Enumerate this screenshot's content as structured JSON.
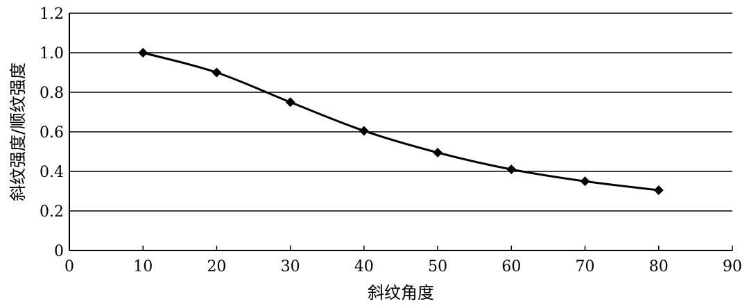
{
  "chart_data": {
    "type": "line",
    "title": "",
    "xlabel": "斜纹角度",
    "ylabel": "斜纹强度/顺纹强度",
    "x": [
      10,
      20,
      30,
      40,
      50,
      60,
      70,
      80
    ],
    "series": [
      {
        "values": [
          1.0,
          0.9,
          0.75,
          0.605,
          0.495,
          0.41,
          0.35,
          0.305
        ]
      }
    ],
    "xlim": [
      0,
      90
    ],
    "ylim": [
      0,
      1.2
    ],
    "xticks": [
      0,
      10,
      20,
      30,
      40,
      50,
      60,
      70,
      80,
      90
    ],
    "yticks": [
      0,
      0.2,
      0.4,
      0.6,
      0.8,
      1.0,
      1.2
    ],
    "xtick_labels": [
      "0",
      "10",
      "20",
      "30",
      "40",
      "50",
      "60",
      "70",
      "80",
      "90"
    ],
    "ytick_labels": [
      "0",
      "0.2",
      "0.4",
      "0.6",
      "0.8",
      "1.0",
      "1.2"
    ],
    "grid": "horizontal",
    "marker": "diamond",
    "line_color": "#000000",
    "grid_color": "#000000",
    "legend": "none"
  }
}
